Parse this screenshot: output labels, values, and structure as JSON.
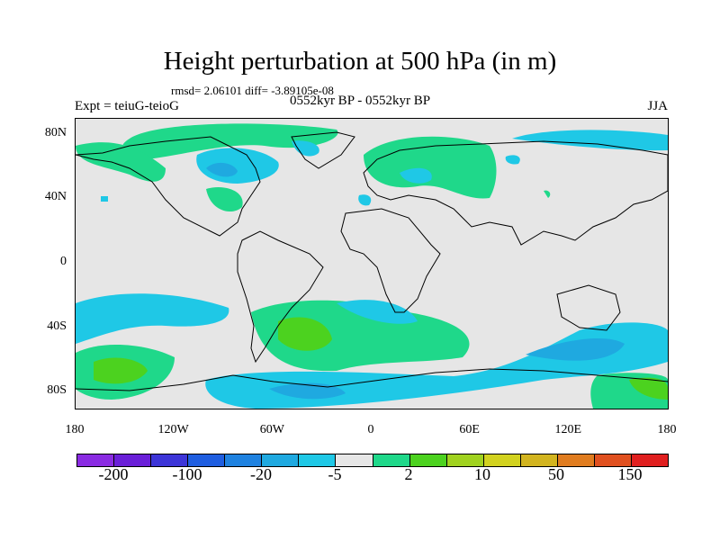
{
  "title": "Height perturbation at 500 hPa (in m)",
  "stats": "rmsd= 2.06101 diff= -3.89105e-08",
  "experiment": "Expt = teiuG-teioG",
  "period": "0552kyr BP - 0552kyr BP",
  "season": "JJA",
  "map": {
    "projection": "cylindrical equidistant",
    "lon_range": [
      -180,
      180
    ],
    "lat_range": [
      -90,
      90
    ],
    "y_ticks": [
      {
        "label": "80N",
        "lat": 80
      },
      {
        "label": "40N",
        "lat": 40
      },
      {
        "label": "0",
        "lat": 0
      },
      {
        "label": "40S",
        "lat": -40
      },
      {
        "label": "80S",
        "lat": -80
      }
    ],
    "x_ticks": [
      {
        "label": "180",
        "lon": -180
      },
      {
        "label": "120W",
        "lon": -120
      },
      {
        "label": "60W",
        "lon": -60
      },
      {
        "label": "0",
        "lon": 0
      },
      {
        "label": "60E",
        "lon": 60
      },
      {
        "label": "120E",
        "lon": 120
      },
      {
        "label": "180",
        "lon": 180
      }
    ],
    "background_color": "#e6e6e6"
  },
  "colorbar": {
    "colors": [
      "#8a2be2",
      "#6a1fd8",
      "#3d35d8",
      "#1f5ee0",
      "#1f82e0",
      "#1fa9e0",
      "#1fc8e6",
      "#e6e6e6",
      "#1fd88a",
      "#4cd21f",
      "#a0d21f",
      "#d2d21f",
      "#d2b41f",
      "#e07c1f",
      "#e0501f",
      "#e01f1f"
    ],
    "labels": [
      {
        "text": "-200",
        "boundary": 1
      },
      {
        "text": "-100",
        "boundary": 3
      },
      {
        "text": "-20",
        "boundary": 5
      },
      {
        "text": "-5",
        "boundary": 7
      },
      {
        "text": "2",
        "boundary": 9
      },
      {
        "text": "10",
        "boundary": 11
      },
      {
        "text": "50",
        "boundary": 13
      },
      {
        "text": "150",
        "boundary": 15
      }
    ]
  }
}
